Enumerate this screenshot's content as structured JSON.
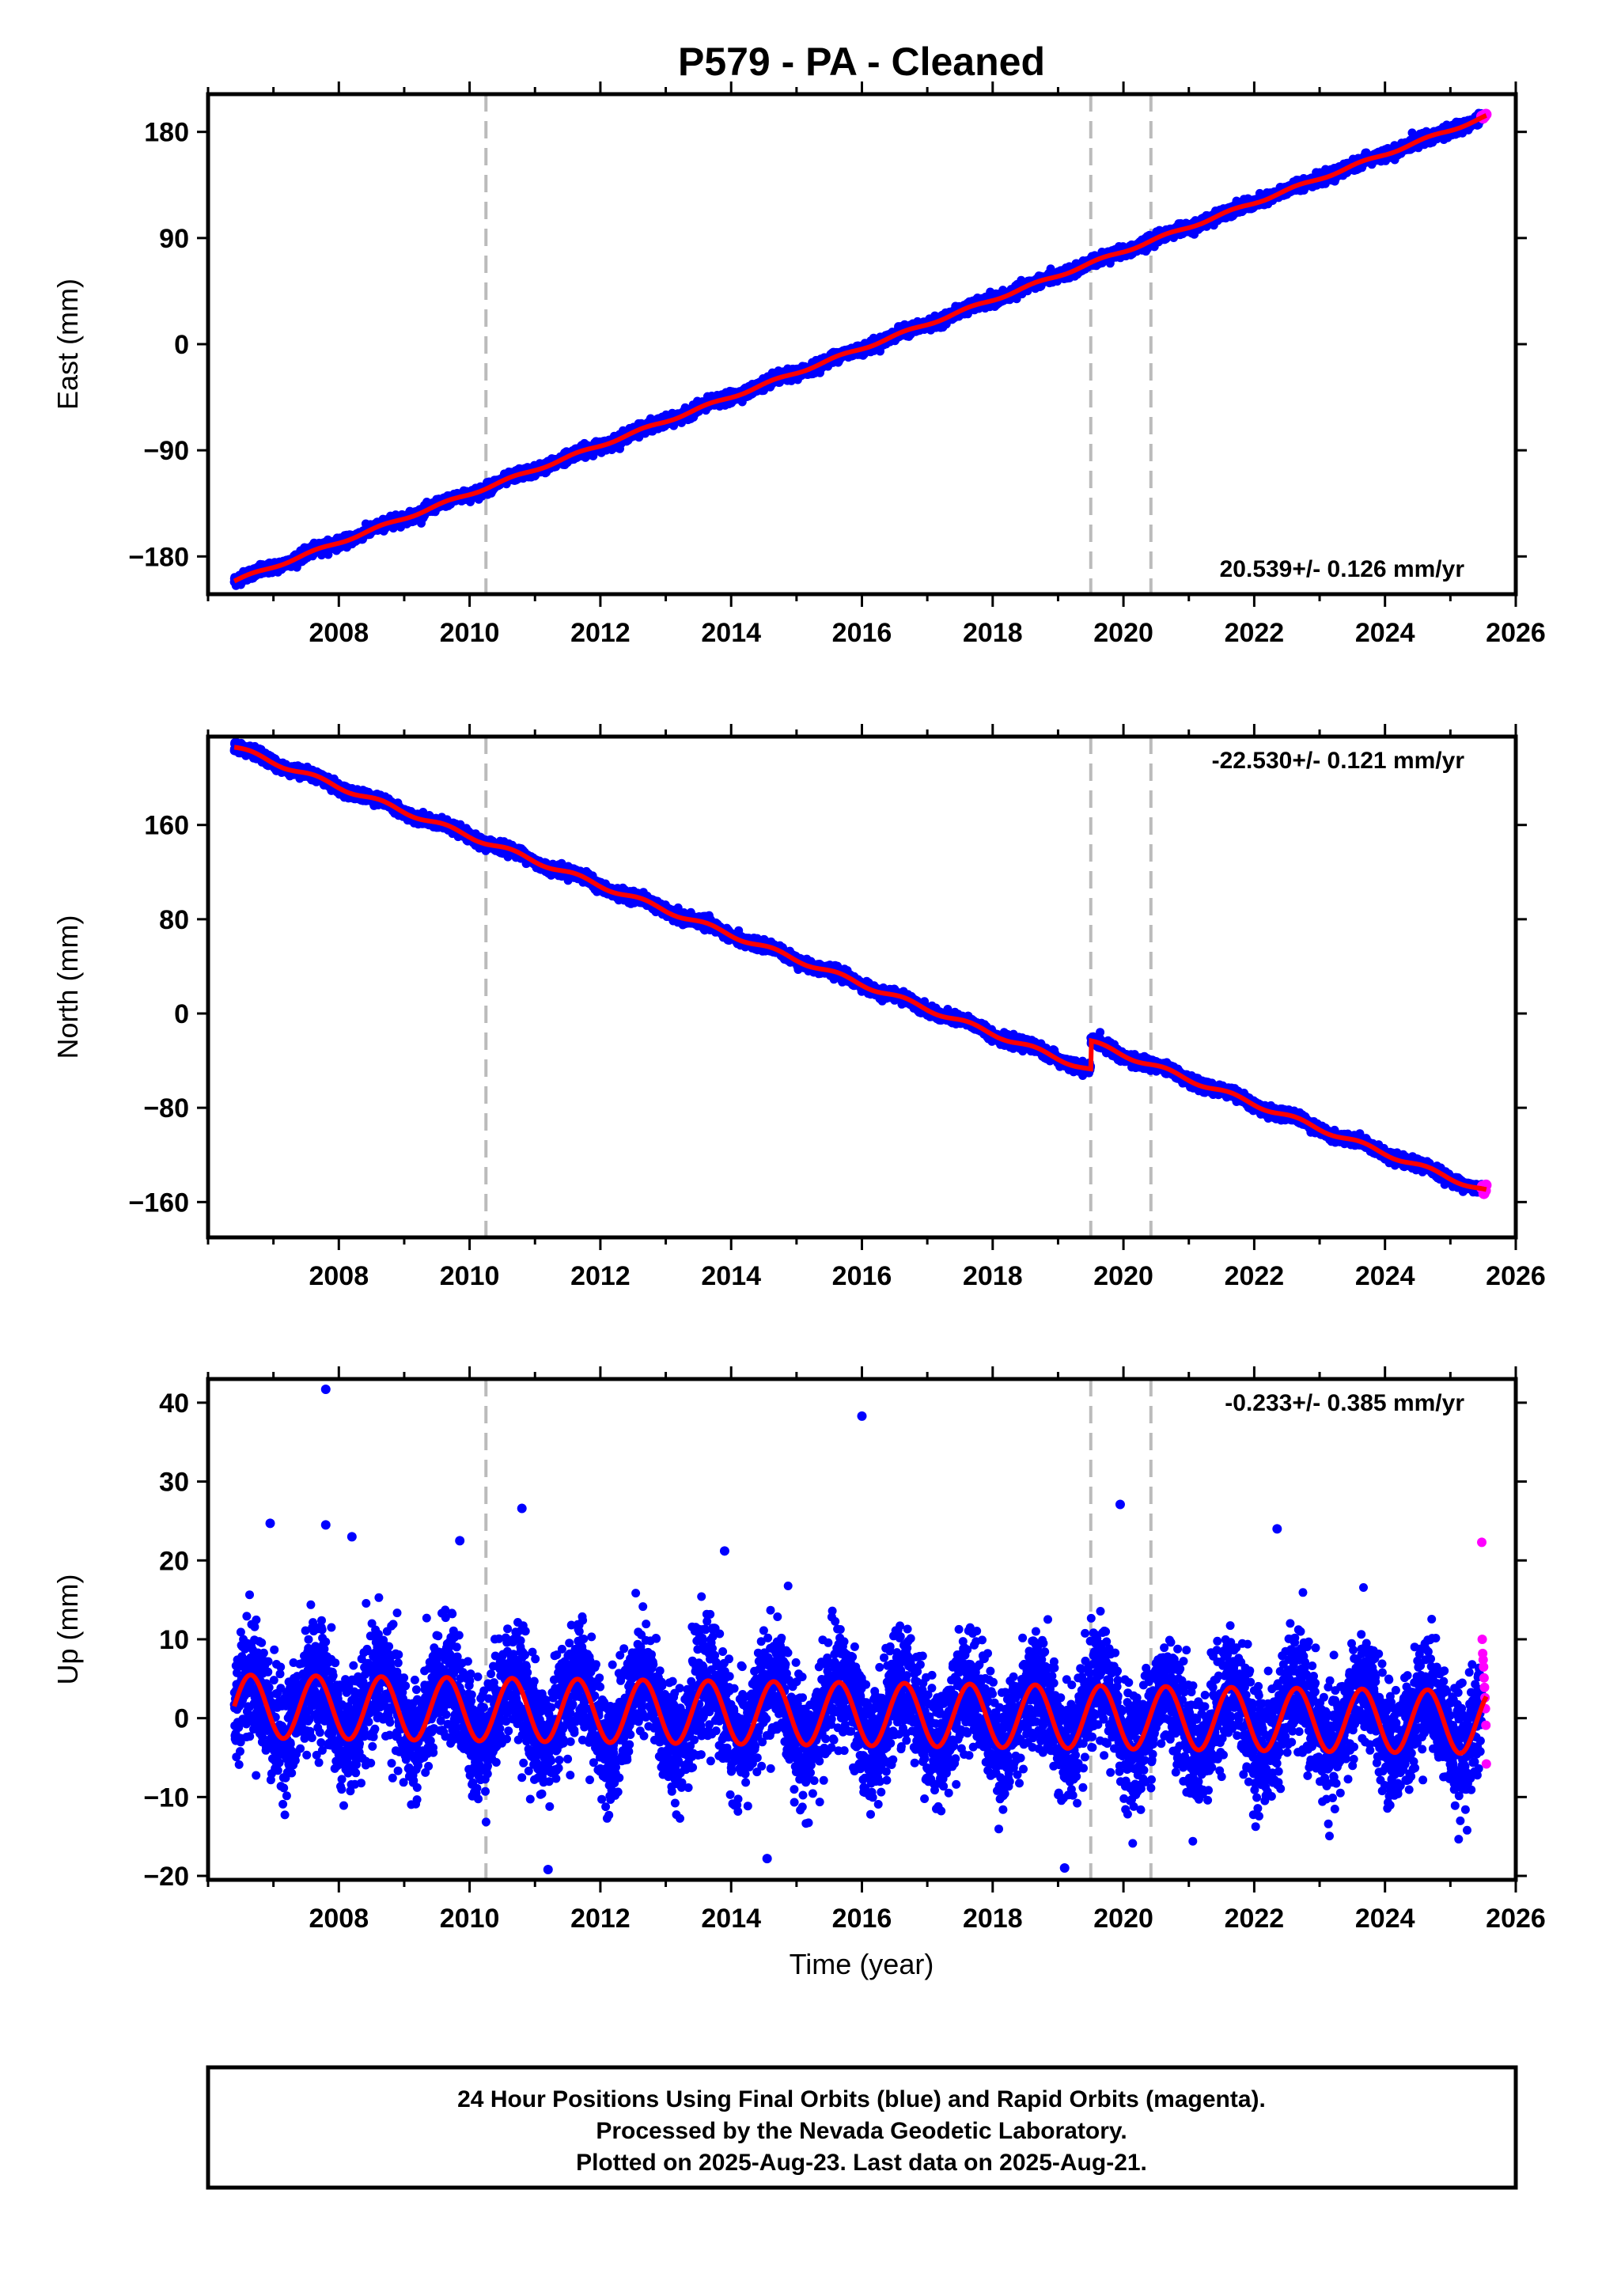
{
  "title": "P579  - PA - Cleaned",
  "colors": {
    "final": "#0000ff",
    "rapid": "#ff00ff",
    "model": "#ff0000",
    "breaks": "#bbbbbb"
  },
  "footer": {
    "line1": "24 Hour Positions Using Final Orbits (blue) and Rapid Orbits (magenta).",
    "line2": "Processed by the Nevada Geodetic Laboratory.",
    "line3": "Plotted on 2025-Aug-23. Last data on 2025-Aug-21."
  },
  "xlabel": "Time (year)",
  "chart_data": [
    {
      "type": "scatter",
      "ylabel": "East (mm)",
      "rate_label": "20.539+/- 0.126 mm/yr",
      "rate_position": "bottom-right",
      "xlim": [
        2006.0,
        2026.0
      ],
      "ylim": [
        -212,
        212
      ],
      "yticks": [
        -180,
        -90,
        0,
        90,
        180
      ],
      "xticks": [
        2008,
        2010,
        2012,
        2014,
        2016,
        2018,
        2020,
        2022,
        2024,
        2026
      ],
      "breaks": [
        2010.25,
        2019.5,
        2020.42
      ],
      "start": 2006.4,
      "end": 2025.55,
      "rapid_start": 2025.48,
      "trend": {
        "x0": 2006.4,
        "y0": -201,
        "x1": 2025.55,
        "y1": 193
      },
      "seasonal_amp": 1.2,
      "noise": 2.2,
      "steps": []
    },
    {
      "type": "scatter",
      "ylabel": "North (mm)",
      "rate_label": "-22.530+/- 0.121 mm/yr",
      "rate_position": "top-right",
      "xlim": [
        2006.0,
        2026.0
      ],
      "ylim": [
        -190,
        235
      ],
      "yticks": [
        -160,
        -80,
        0,
        80,
        160
      ],
      "xticks": [
        2008,
        2010,
        2012,
        2014,
        2016,
        2018,
        2020,
        2022,
        2024,
        2026
      ],
      "breaks": [
        2010.25,
        2019.5,
        2020.42
      ],
      "start": 2006.4,
      "end": 2025.55,
      "rapid_start": 2025.48,
      "trend": {
        "x0": 2006.4,
        "y0": 226,
        "x1": 2025.55,
        "y1": -175
      },
      "seasonal_amp": 2.0,
      "noise": 2.2,
      "steps": [
        {
          "x": 2019.5,
          "dy": 24
        }
      ]
    },
    {
      "type": "scatter",
      "ylabel": "Up (mm)",
      "rate_label": "-0.233+/- 0.385 mm/yr",
      "rate_position": "top-right",
      "xlim": [
        2006.0,
        2026.0
      ],
      "ylim": [
        -20.5,
        43
      ],
      "yticks": [
        -20,
        -10,
        0,
        10,
        20,
        30,
        40
      ],
      "xticks": [
        2008,
        2010,
        2012,
        2014,
        2016,
        2018,
        2020,
        2022,
        2024,
        2026
      ],
      "breaks": [
        2010.25,
        2019.5,
        2020.42
      ],
      "start": 2006.4,
      "end": 2025.55,
      "rapid_start": 2025.48,
      "trend": {
        "x0": 2006.4,
        "y0": 1.5,
        "x1": 2025.55,
        "y1": -0.5
      },
      "seasonal_amp": 4.0,
      "noise": 3.6,
      "steps": [],
      "outliers": [
        {
          "x": 2007.8,
          "y": 41.7
        },
        {
          "x": 2016.0,
          "y": 38.3
        },
        {
          "x": 2019.95,
          "y": 27.1
        },
        {
          "x": 2010.8,
          "y": 26.6
        },
        {
          "x": 2006.95,
          "y": 24.7
        },
        {
          "x": 2007.8,
          "y": 24.5
        },
        {
          "x": 2022.35,
          "y": 24.0
        },
        {
          "x": 2008.2,
          "y": 23.0
        },
        {
          "x": 2009.85,
          "y": 22.5
        },
        {
          "x": 2013.9,
          "y": 21.2
        },
        {
          "x": 2014.55,
          "y": -17.8
        },
        {
          "x": 2011.2,
          "y": -19.2
        },
        {
          "x": 2019.1,
          "y": -19.0
        }
      ],
      "rapid_values": [
        22.3,
        10.0,
        8.2,
        7.4,
        6.5,
        5.1,
        3.9,
        2.6,
        1.2,
        -0.9,
        -5.8
      ]
    }
  ]
}
